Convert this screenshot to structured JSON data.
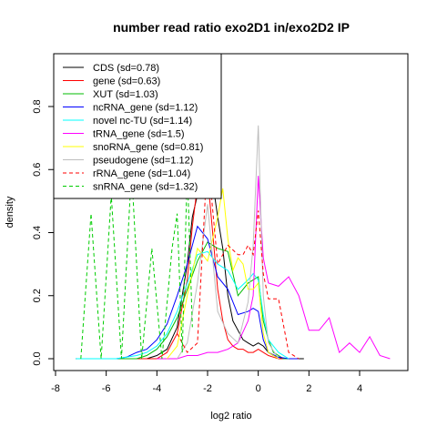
{
  "chart_data": {
    "type": "line",
    "title": "number read ratio exo2D1 in/exo2D2 IP",
    "xlabel": "log2 ratio",
    "ylabel": "density",
    "xlim": [
      -8,
      6
    ],
    "ylim": [
      0,
      0.9
    ],
    "xticks": [
      "-8",
      "-6",
      "-4",
      "-2",
      "0",
      "2",
      "4"
    ],
    "yticks": [
      "0.0",
      "0.2",
      "0.4",
      "0.6",
      "0.8"
    ],
    "legend_position": "top-left",
    "series": [
      {
        "name": "CDS (sd=0.78)",
        "color": "#000000",
        "dash": "solid",
        "x": [
          -7.2,
          -6.8,
          -6.4,
          -6.0,
          -5.6,
          -5.2,
          -4.8,
          -4.4,
          -4.0,
          -3.6,
          -3.2,
          -2.8,
          -2.6,
          -2.4,
          -2.2,
          -2.0,
          -1.8,
          -1.6,
          -1.4,
          -1.2,
          -1.0,
          -0.8,
          -0.6,
          -0.4,
          -0.2,
          0.0,
          0.2,
          0.4,
          0.6,
          0.8,
          1.0,
          1.2,
          1.4,
          1.6,
          1.8
        ],
        "y": [
          0,
          0,
          0,
          0,
          0,
          0,
          0,
          0,
          0.01,
          0.03,
          0.1,
          0.3,
          0.45,
          0.52,
          0.58,
          0.6,
          0.56,
          0.45,
          0.35,
          0.2,
          0.12,
          0.09,
          0.06,
          0.05,
          0.04,
          0.05,
          0.04,
          0.02,
          0.01,
          0.005,
          0,
          0,
          0,
          0,
          0
        ]
      },
      {
        "name": "gene (sd=0.63)",
        "color": "#ff0000",
        "dash": "solid",
        "x": [
          -7.2,
          -6.8,
          -6.4,
          -6.0,
          -5.6,
          -5.2,
          -4.8,
          -4.4,
          -4.0,
          -3.6,
          -3.2,
          -2.8,
          -2.6,
          -2.4,
          -2.2,
          -2.0,
          -1.8,
          -1.6,
          -1.4,
          -1.2,
          -1.0,
          -0.8,
          -0.6,
          -0.4,
          -0.2,
          0.0,
          0.2,
          0.4,
          0.6,
          0.8,
          1.0,
          1.2,
          1.4
        ],
        "y": [
          0,
          0,
          0,
          0,
          0,
          0,
          0,
          0,
          0,
          0.02,
          0.08,
          0.25,
          0.42,
          0.55,
          0.62,
          0.58,
          0.4,
          0.22,
          0.12,
          0.06,
          0.04,
          0.03,
          0.03,
          0.02,
          0.02,
          0.03,
          0.02,
          0.01,
          0.005,
          0,
          0,
          0,
          0
        ]
      },
      {
        "name": "XUT (sd=1.03)",
        "color": "#00bb00",
        "dash": "solid",
        "x": [
          -7.2,
          -6.8,
          -6.4,
          -6.0,
          -5.6,
          -5.2,
          -4.8,
          -4.4,
          -4.0,
          -3.6,
          -3.2,
          -2.8,
          -2.4,
          -2.0,
          -1.6,
          -1.2,
          -0.8,
          -0.4,
          -0.2,
          0.0,
          0.2,
          0.4,
          0.6,
          0.8,
          1.0,
          1.2,
          1.6
        ],
        "y": [
          0,
          0,
          0,
          0,
          0,
          0,
          0,
          0.01,
          0.03,
          0.07,
          0.13,
          0.22,
          0.31,
          0.37,
          0.35,
          0.34,
          0.2,
          0.24,
          0.25,
          0.26,
          0.12,
          0.06,
          0.02,
          0.01,
          0,
          0,
          0
        ]
      },
      {
        "name": "ncRNA_gene (sd=1.12)",
        "color": "#0000ff",
        "dash": "solid",
        "x": [
          -7.2,
          -6.8,
          -6.4,
          -6.0,
          -5.6,
          -5.2,
          -4.8,
          -4.4,
          -4.0,
          -3.6,
          -3.2,
          -2.8,
          -2.4,
          -2.0,
          -1.6,
          -1.2,
          -0.8,
          -0.4,
          -0.2,
          0.0,
          0.2,
          0.4,
          0.8,
          1.2,
          1.6
        ],
        "y": [
          0,
          0,
          0,
          0,
          0,
          0.005,
          0.02,
          0.03,
          0.06,
          0.11,
          0.2,
          0.3,
          0.42,
          0.38,
          0.26,
          0.22,
          0.14,
          0.15,
          0.16,
          0.15,
          0.06,
          0.02,
          0.005,
          0,
          0
        ]
      },
      {
        "name": "novel nc-TU (sd=1.14)",
        "color": "#00ffff",
        "dash": "solid",
        "x": [
          -7.2,
          -6.8,
          -6.4,
          -6.0,
          -5.6,
          -5.2,
          -4.8,
          -4.4,
          -4.0,
          -3.6,
          -3.2,
          -2.8,
          -2.4,
          -2.0,
          -1.6,
          -1.2,
          -0.8,
          -0.4,
          -0.2,
          0.0,
          0.2,
          0.4,
          0.8,
          1.2
        ],
        "y": [
          0,
          0,
          0,
          0,
          0,
          0.005,
          0.01,
          0.02,
          0.04,
          0.08,
          0.15,
          0.24,
          0.33,
          0.34,
          0.3,
          0.28,
          0.22,
          0.25,
          0.27,
          0.25,
          0.14,
          0.06,
          0.02,
          0
        ]
      },
      {
        "name": "tRNA_gene (sd=1.5)",
        "color": "#ff00ff",
        "dash": "solid",
        "x": [
          -4.0,
          -3.6,
          -3.2,
          -2.8,
          -2.4,
          -2.0,
          -1.6,
          -1.2,
          -0.8,
          -0.4,
          -0.2,
          0.0,
          0.2,
          0.4,
          0.8,
          1.2,
          1.6,
          2.0,
          2.4,
          2.8,
          3.2,
          3.6,
          4.0,
          4.4,
          4.8,
          5.2
        ],
        "y": [
          0,
          0,
          0,
          0.01,
          0.01,
          0.02,
          0.02,
          0.03,
          0.05,
          0.12,
          0.2,
          0.58,
          0.32,
          0.24,
          0.23,
          0.26,
          0.2,
          0.09,
          0.09,
          0.13,
          0.02,
          0.05,
          0.02,
          0.07,
          0.01,
          0
        ]
      },
      {
        "name": "snoRNA_gene (sd=0.81)",
        "color": "#ffff00",
        "dash": "solid",
        "x": [
          -3.6,
          -3.2,
          -2.8,
          -2.4,
          -2.0,
          -1.6,
          -1.4,
          -1.2,
          -1.0,
          -0.8,
          -0.6,
          -0.4,
          -0.2,
          0.0,
          0.2,
          0.4,
          0.6,
          0.8
        ],
        "y": [
          0,
          0.04,
          0.2,
          0.35,
          0.31,
          0.45,
          0.54,
          0.38,
          0.28,
          0.32,
          0.3,
          0.22,
          0.22,
          0.24,
          0.08,
          0.02,
          0.01,
          0
        ]
      },
      {
        "name": "pseudogene (sd=1.12)",
        "color": "#bebebe",
        "dash": "solid",
        "x": [
          -3.2,
          -2.8,
          -2.4,
          -2.0,
          -1.6,
          -1.2,
          -0.8,
          -0.4,
          -0.2,
          0.0,
          0.2,
          0.4,
          0.8
        ],
        "y": [
          0,
          0.05,
          0.24,
          0.49,
          0.15,
          0.08,
          0.05,
          0.18,
          0.36,
          0.74,
          0.2,
          0.05,
          0
        ]
      },
      {
        "name": "rRNA_gene (sd=1.04)",
        "color": "#ff0000",
        "dash": "dashed",
        "x": [
          -3.2,
          -2.8,
          -2.4,
          -2.0,
          -1.6,
          -1.2,
          -0.8,
          -0.6,
          -0.4,
          -0.2,
          0.0,
          0.2,
          0.4,
          0.8,
          1.2,
          1.6
        ],
        "y": [
          0.08,
          0.02,
          0.05,
          0.65,
          0.3,
          0.36,
          0.33,
          0.33,
          0.36,
          0.33,
          0.47,
          0.27,
          0.19,
          0.19,
          0.02,
          0
        ]
      },
      {
        "name": "snRNA_gene (sd=1.32)",
        "color": "#00cc00",
        "dash": "dashed",
        "x": [
          -7.0,
          -6.6,
          -6.2,
          -5.8,
          -5.4,
          -5.0,
          -4.6,
          -4.2,
          -3.8,
          -3.4,
          -3.2,
          -3.0,
          -2.8,
          -2.6
        ],
        "y": [
          0,
          0.46,
          0,
          0.52,
          0,
          0.6,
          0,
          0.35,
          0,
          0.35,
          0.46,
          0.02,
          0.6,
          0.1
        ]
      }
    ]
  }
}
